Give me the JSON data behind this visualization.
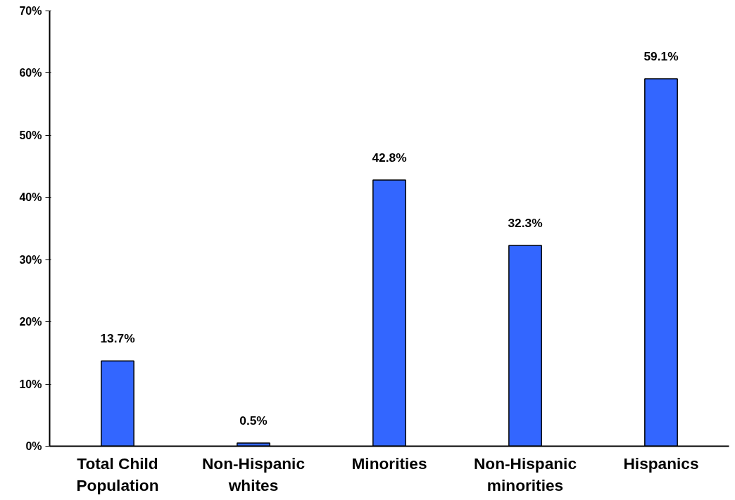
{
  "chart_data": {
    "type": "bar",
    "categories": [
      "Total Child\nPopulation",
      "Non-Hispanic\nwhites",
      "Minorities",
      "Non-Hispanic\nminorities",
      "Hispanics"
    ],
    "values": [
      13.7,
      0.5,
      42.8,
      32.3,
      59.1
    ],
    "value_labels": [
      "13.7%",
      "0.5%",
      "42.8%",
      "32.3%",
      "59.1%"
    ],
    "color": "#3366ff",
    "ylim": [
      0,
      70
    ],
    "yticks": [
      {
        "value": 0,
        "label": "0%"
      },
      {
        "value": 10,
        "label": "10%"
      },
      {
        "value": 20,
        "label": "20%"
      },
      {
        "value": 30,
        "label": "30%"
      },
      {
        "value": 40,
        "label": "40%"
      },
      {
        "value": 50,
        "label": "50%"
      },
      {
        "value": 60,
        "label": "60%"
      },
      {
        "value": 70,
        "label": "70%"
      }
    ],
    "grid": false
  }
}
